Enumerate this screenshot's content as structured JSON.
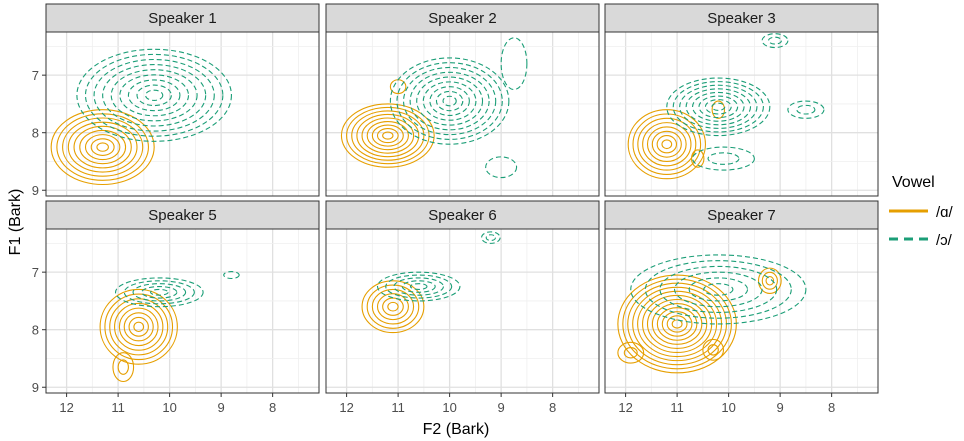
{
  "chart_data": {
    "type": "contour",
    "xlabel": "F2 (Bark)",
    "ylabel": "F1 (Bark)",
    "xlim": [
      12.4,
      7.1
    ],
    "ylim": [
      6.25,
      9.1
    ],
    "x_reversed": true,
    "y_reversed": true,
    "x_ticks": [
      12,
      11,
      10,
      9,
      8
    ],
    "y_ticks": [
      7,
      8,
      9
    ],
    "grid": true,
    "legend_title": "Vowel",
    "legend_position": "right",
    "series": [
      {
        "name": "/ɑ/",
        "color": "#E69F00",
        "dash": "solid"
      },
      {
        "name": "/ɔ/",
        "color": "#1B9E77",
        "dash": "dashed"
      }
    ],
    "facets": [
      {
        "title": "Speaker 1",
        "clusters": [
          {
            "series": 0,
            "cx": 11.3,
            "cy": 8.25,
            "rx": 1.0,
            "ry": 0.65,
            "levels": 9
          },
          {
            "series": 1,
            "cx": 10.3,
            "cy": 7.35,
            "rx": 1.5,
            "ry": 0.8,
            "levels": 9
          }
        ]
      },
      {
        "title": "Speaker 2",
        "clusters": [
          {
            "series": 0,
            "cx": 11.2,
            "cy": 8.05,
            "rx": 0.9,
            "ry": 0.55,
            "levels": 9
          },
          {
            "series": 0,
            "cx": 11.0,
            "cy": 7.2,
            "rx": 0.15,
            "ry": 0.12,
            "levels": 1
          },
          {
            "series": 1,
            "cx": 10.0,
            "cy": 7.45,
            "rx": 1.15,
            "ry": 0.75,
            "levels": 9
          },
          {
            "series": 1,
            "cx": 9.0,
            "cy": 8.6,
            "rx": 0.3,
            "ry": 0.18,
            "levels": 1
          },
          {
            "series": 1,
            "cx": 8.75,
            "cy": 6.8,
            "rx": 0.25,
            "ry": 0.45,
            "levels": 1
          }
        ]
      },
      {
        "title": "Speaker 3",
        "clusters": [
          {
            "series": 0,
            "cx": 11.2,
            "cy": 8.2,
            "rx": 0.75,
            "ry": 0.6,
            "levels": 8
          },
          {
            "series": 0,
            "cx": 10.2,
            "cy": 7.6,
            "rx": 0.12,
            "ry": 0.15,
            "levels": 1
          },
          {
            "series": 0,
            "cx": 10.6,
            "cy": 8.45,
            "rx": 0.12,
            "ry": 0.15,
            "levels": 1
          },
          {
            "series": 1,
            "cx": 10.2,
            "cy": 7.55,
            "rx": 1.0,
            "ry": 0.5,
            "levels": 8
          },
          {
            "series": 1,
            "cx": 10.1,
            "cy": 8.45,
            "rx": 0.6,
            "ry": 0.2,
            "levels": 2
          },
          {
            "series": 1,
            "cx": 8.5,
            "cy": 7.6,
            "rx": 0.35,
            "ry": 0.15,
            "levels": 2
          },
          {
            "series": 1,
            "cx": 9.1,
            "cy": 6.4,
            "rx": 0.25,
            "ry": 0.12,
            "levels": 2
          }
        ]
      },
      {
        "title": "Speaker 5",
        "clusters": [
          {
            "series": 0,
            "cx": 10.6,
            "cy": 7.95,
            "rx": 0.75,
            "ry": 0.65,
            "levels": 8
          },
          {
            "series": 0,
            "cx": 10.9,
            "cy": 8.65,
            "rx": 0.2,
            "ry": 0.25,
            "levels": 2
          },
          {
            "series": 1,
            "cx": 10.2,
            "cy": 7.35,
            "rx": 0.85,
            "ry": 0.25,
            "levels": 5
          },
          {
            "series": 1,
            "cx": 8.8,
            "cy": 7.05,
            "rx": 0.15,
            "ry": 0.06,
            "levels": 1
          }
        ]
      },
      {
        "title": "Speaker 6",
        "clusters": [
          {
            "series": 0,
            "cx": 11.1,
            "cy": 7.6,
            "rx": 0.6,
            "ry": 0.45,
            "levels": 6
          },
          {
            "series": 1,
            "cx": 10.6,
            "cy": 7.25,
            "rx": 0.8,
            "ry": 0.25,
            "levels": 5
          },
          {
            "series": 1,
            "cx": 9.2,
            "cy": 6.4,
            "rx": 0.18,
            "ry": 0.1,
            "levels": 2
          }
        ]
      },
      {
        "title": "Speaker 7",
        "clusters": [
          {
            "series": 0,
            "cx": 11.0,
            "cy": 7.9,
            "rx": 1.15,
            "ry": 0.85,
            "levels": 12
          },
          {
            "series": 0,
            "cx": 11.9,
            "cy": 8.4,
            "rx": 0.25,
            "ry": 0.18,
            "levels": 2
          },
          {
            "series": 0,
            "cx": 10.3,
            "cy": 8.35,
            "rx": 0.2,
            "ry": 0.18,
            "levels": 2
          },
          {
            "series": 0,
            "cx": 9.2,
            "cy": 7.15,
            "rx": 0.22,
            "ry": 0.22,
            "levels": 3
          },
          {
            "series": 1,
            "cx": 10.2,
            "cy": 7.3,
            "rx": 1.7,
            "ry": 0.6,
            "levels": 6
          }
        ]
      }
    ]
  }
}
